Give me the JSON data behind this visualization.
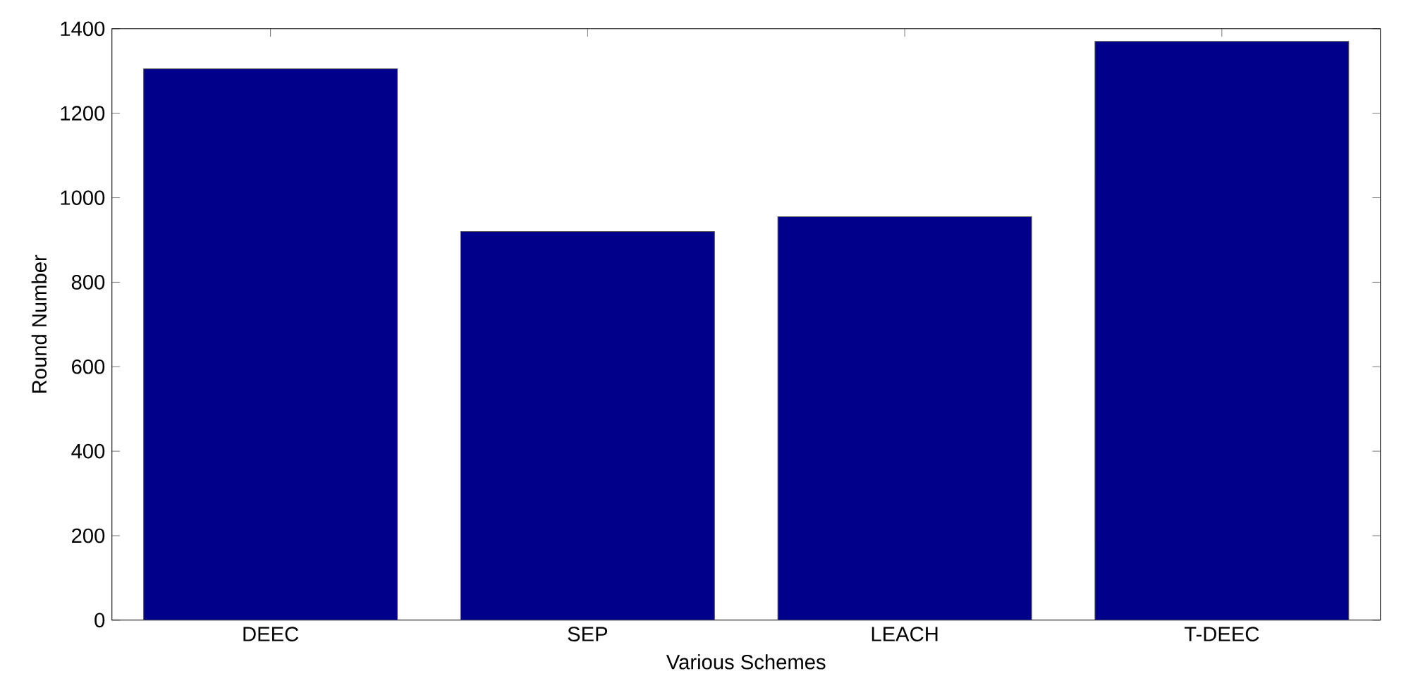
{
  "chart_data": {
    "type": "bar",
    "xlabel": "Various Schemes",
    "ylabel": "Round Number",
    "categories": [
      "DEEC",
      "SEP",
      "LEACH",
      "T-DEEC"
    ],
    "values": [
      1305,
      920,
      955,
      1370
    ],
    "color": "#00008b",
    "ylim": [
      0,
      1400
    ],
    "yticks": [
      0,
      200,
      400,
      600,
      800,
      1000,
      1200,
      1400
    ]
  }
}
